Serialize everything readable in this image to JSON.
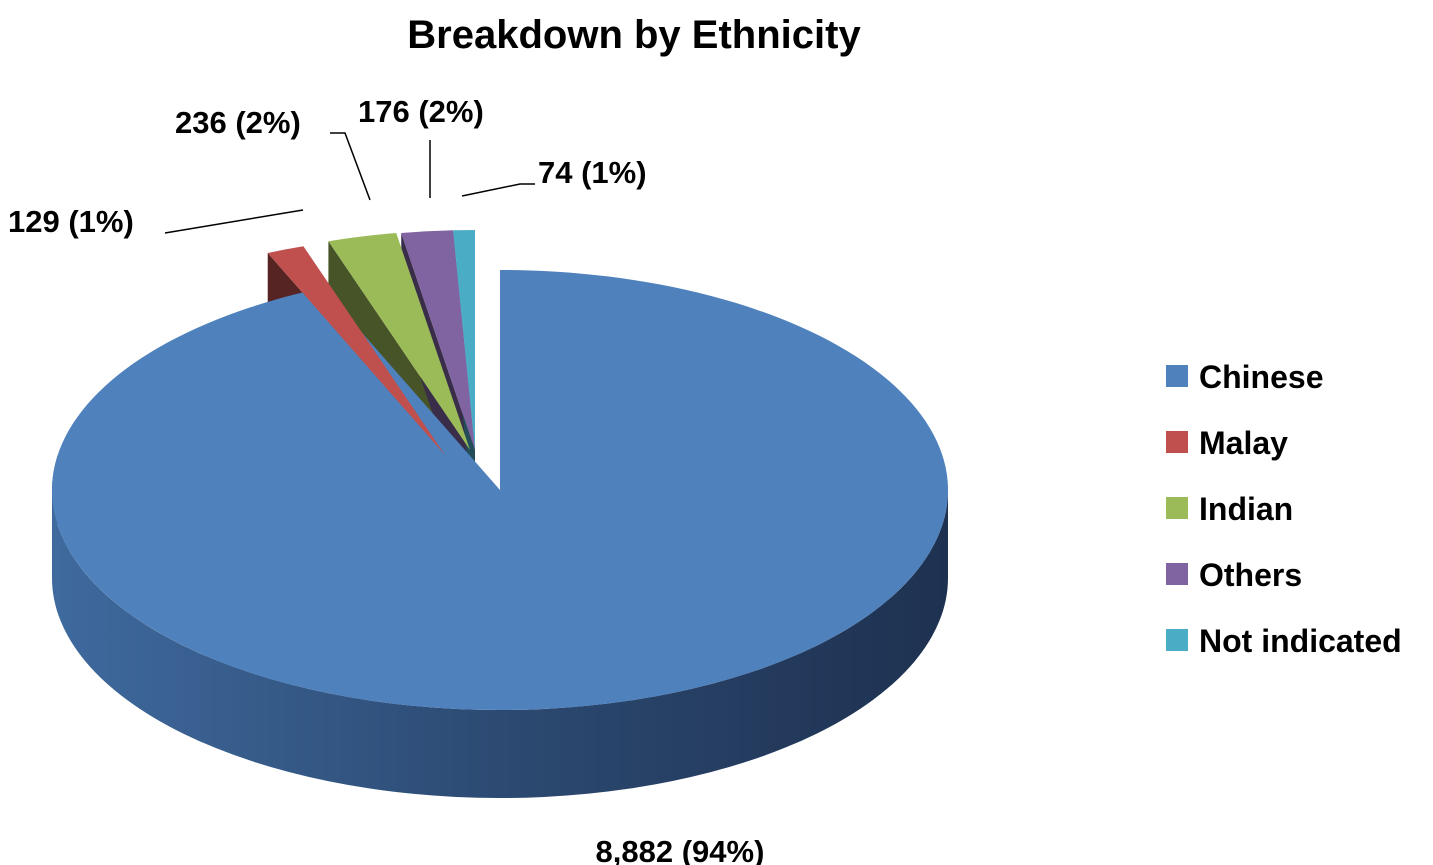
{
  "chart_data": {
    "type": "pie",
    "title": "Breakdown by Ethnicity",
    "legend_position": "right",
    "categories": [
      "Chinese",
      "Malay",
      "Indian",
      "Others",
      "Not indicated"
    ],
    "values": [
      8882,
      129,
      236,
      176,
      74
    ],
    "data_labels": [
      "8,882 (94%)",
      "129 (1%)",
      "236 (2%)",
      "176 (2%)",
      "74 (1%)"
    ],
    "colors": [
      "#4F81BD",
      "#C0504D",
      "#9BBB59",
      "#8064A2",
      "#4BACC6"
    ],
    "style": "3d-exploded"
  }
}
